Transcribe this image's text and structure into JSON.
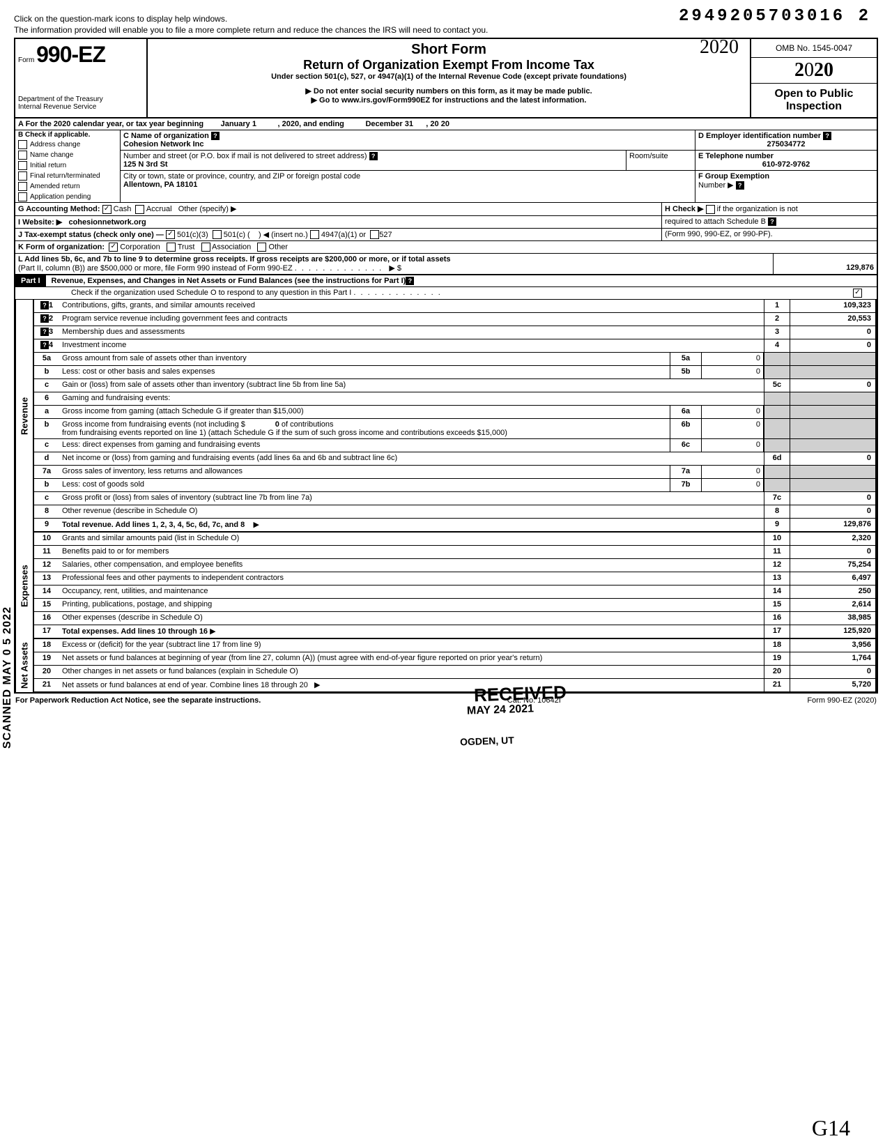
{
  "top_note1": "Click on the question-mark icons to display help windows.",
  "top_note2": "The information provided will enable you to file a more complete return and reduce the chances the IRS will need to contact you.",
  "document_id": "2949205703016 2",
  "form": {
    "prefix": "Form",
    "number": "990-EZ",
    "dept": "Department of the Treasury",
    "irs": "Internal Revenue Service"
  },
  "header": {
    "title1": "Short Form",
    "title2": "Return of Organization Exempt From Income Tax",
    "subtitle": "Under section 501(c), 527, or 4947(a)(1) of the Internal Revenue Code (except private foundations)",
    "note1": "▶ Do not enter social security numbers on this form, as it may be made public.",
    "note2": "▶ Go to www.irs.gov/Form990EZ for instructions and the latest information.",
    "hand_year": "2020"
  },
  "right": {
    "omb": "OMB No. 1545-0047",
    "year": "2020",
    "open1": "Open to Public",
    "open2": "Inspection"
  },
  "lineA": {
    "text": "A For the 2020 calendar year, or tax year beginning",
    "month": "January 1",
    "mid": ", 2020, and ending",
    "end_month": "December 31",
    "end_year": ", 20      20"
  },
  "sectionB": {
    "label": "B Check if applicable.",
    "items": [
      "Address change",
      "Name change",
      "Initial return",
      "Final return/terminated",
      "Amended return",
      "Application pending"
    ]
  },
  "sectionC": {
    "label": "C  Name of organization",
    "name": "Cohesion Network Inc",
    "addr_label": "Number and street (or P.O. box if mail is not delivered to street address)",
    "room_label": "Room/suite",
    "addr": "125 N 3rd St",
    "city_label": "City or town, state or province, country, and ZIP or foreign postal code",
    "city": "Allentown, PA 18101"
  },
  "sectionD": {
    "label": "D Employer identification number",
    "value": "275034772"
  },
  "sectionE": {
    "label": "E Telephone number",
    "value": "610-972-9762"
  },
  "sectionF": {
    "label": "F Group Exemption",
    "label2": "Number ▶"
  },
  "lineG": {
    "label": "G Accounting Method:",
    "cash": "Cash",
    "accrual": "Accrual",
    "other": "Other (specify) ▶"
  },
  "lineH": {
    "text1": "H Check ▶",
    "text2": "if the organization is not",
    "text3": "required to attach Schedule B",
    "text4": "(Form 990, 990-EZ, or 990-PF)."
  },
  "lineI": {
    "label": "I  Website: ▶",
    "value": "cohesionnetwork.org"
  },
  "lineJ": {
    "label": "J Tax-exempt status (check only one) —",
    "opt1": "501(c)(3)",
    "opt2": "501(c) (",
    "opt2b": ") ◀ (insert no.)",
    "opt3": "4947(a)(1) or",
    "opt4": "527"
  },
  "lineK": {
    "label": "K Form of organization:",
    "opt1": "Corporation",
    "opt2": "Trust",
    "opt3": "Association",
    "opt4": "Other"
  },
  "lineL": {
    "text": "L Add lines 5b, 6c, and 7b to line 9 to determine gross receipts. If gross receipts are $200,000 or more, or if total assets",
    "text2": "(Part II, column (B)) are $500,000 or more, file Form 990 instead of Form 990-EZ",
    "arrow": "▶  $",
    "value": "129,876"
  },
  "part1": {
    "label": "Part I",
    "title": "Revenue, Expenses, and Changes in Net Assets or Fund Balances (see the instructions for Part I)",
    "checknote": "Check if the organization used Schedule O to respond to any question in this Part I",
    "check": "✓"
  },
  "sections": {
    "revenue": "Revenue",
    "expenses": "Expenses",
    "netassets": "Net Assets"
  },
  "lines": {
    "l1": {
      "n": "1",
      "d": "Contributions, gifts, grants, and similar amounts received",
      "box": "1",
      "v": "109,323"
    },
    "l2": {
      "n": "2",
      "d": "Program service revenue including government fees and contracts",
      "box": "2",
      "v": "20,553"
    },
    "l3": {
      "n": "3",
      "d": "Membership dues and assessments",
      "box": "3",
      "v": "0"
    },
    "l4": {
      "n": "4",
      "d": "Investment income",
      "box": "4",
      "v": "0"
    },
    "l5a": {
      "n": "5a",
      "d": "Gross amount from sale of assets other than inventory",
      "sub": "5a",
      "sv": "0"
    },
    "l5b": {
      "n": "b",
      "d": "Less: cost or other basis and sales expenses",
      "sub": "5b",
      "sv": "0"
    },
    "l5c": {
      "n": "c",
      "d": "Gain or (loss) from sale of assets other than inventory (subtract line 5b from line 5a)",
      "box": "5c",
      "v": "0"
    },
    "l6": {
      "n": "6",
      "d": "Gaming and fundraising events:"
    },
    "l6a": {
      "n": "a",
      "d": "Gross income from gaming (attach Schedule G if greater than $15,000)",
      "sub": "6a",
      "sv": "0"
    },
    "l6b": {
      "n": "b",
      "d": "Gross income from fundraising events (not including  $",
      "d2": "of contributions",
      "d3": "from fundraising events reported on line 1) (attach Schedule G if the sum of such gross income and contributions exceeds $15,000)",
      "mid": "0",
      "sub": "6b",
      "sv": "0"
    },
    "l6c": {
      "n": "c",
      "d": "Less: direct expenses from gaming and fundraising events",
      "sub": "6c",
      "sv": "0"
    },
    "l6d": {
      "n": "d",
      "d": "Net income or (loss) from gaming and fundraising events (add lines 6a and 6b and subtract line 6c)",
      "box": "6d",
      "v": "0"
    },
    "l7a": {
      "n": "7a",
      "d": "Gross sales of inventory, less returns and allowances",
      "sub": "7a",
      "sv": "0"
    },
    "l7b": {
      "n": "b",
      "d": "Less: cost of goods sold",
      "sub": "7b",
      "sv": "0"
    },
    "l7c": {
      "n": "c",
      "d": "Gross profit or (loss) from sales of inventory (subtract line 7b from line 7a)",
      "box": "7c",
      "v": "0"
    },
    "l8": {
      "n": "8",
      "d": "Other revenue (describe in Schedule O)",
      "box": "8",
      "v": "0"
    },
    "l9": {
      "n": "9",
      "d": "Total revenue. Add lines 1, 2, 3, 4, 5c, 6d, 7c, and 8",
      "arrow": "▶",
      "box": "9",
      "v": "129,876"
    },
    "l10": {
      "n": "10",
      "d": "Grants and similar amounts paid (list in Schedule O)",
      "box": "10",
      "v": "2,320"
    },
    "l11": {
      "n": "11",
      "d": "Benefits paid to or for members",
      "box": "11",
      "v": "0"
    },
    "l12": {
      "n": "12",
      "d": "Salaries, other compensation, and employee benefits",
      "box": "12",
      "v": "75,254"
    },
    "l13": {
      "n": "13",
      "d": "Professional fees and other payments to independent contractors",
      "box": "13",
      "v": "6,497"
    },
    "l14": {
      "n": "14",
      "d": "Occupancy, rent, utilities, and maintenance",
      "box": "14",
      "v": "250"
    },
    "l15": {
      "n": "15",
      "d": "Printing, publications, postage, and shipping",
      "box": "15",
      "v": "2,614"
    },
    "l16": {
      "n": "16",
      "d": "Other expenses (describe in Schedule O)",
      "box": "16",
      "v": "38,985"
    },
    "l17": {
      "n": "17",
      "d": "Total expenses. Add lines 10 through 16",
      "arrow": "▶",
      "box": "17",
      "v": "125,920"
    },
    "l18": {
      "n": "18",
      "d": "Excess or (deficit) for the year (subtract line 17 from line 9)",
      "box": "18",
      "v": "3,956"
    },
    "l19": {
      "n": "19",
      "d": "Net assets or fund balances at beginning of year (from line 27, column (A)) (must agree with end-of-year figure reported on prior year's return)",
      "box": "19",
      "v": "1,764"
    },
    "l20": {
      "n": "20",
      "d": "Other changes in net assets or fund balances (explain in Schedule O)",
      "box": "20",
      "v": "0"
    },
    "l21": {
      "n": "21",
      "d": "Net assets or fund balances at end of year. Combine lines 18 through 20",
      "arrow": "▶",
      "box": "21",
      "v": "5,720"
    }
  },
  "stamps": {
    "received": "RECEIVED",
    "date": "MAY 24 2021",
    "ogden": "OGDEN, UT",
    "scanned": "SCANNED  MAY 0 5 2022"
  },
  "footer": {
    "left": "For Paperwork Reduction Act Notice, see the separate instructions.",
    "mid": "Cat. No. 10642I",
    "right": "Form 990-EZ (2020)"
  },
  "handnote": "G14"
}
